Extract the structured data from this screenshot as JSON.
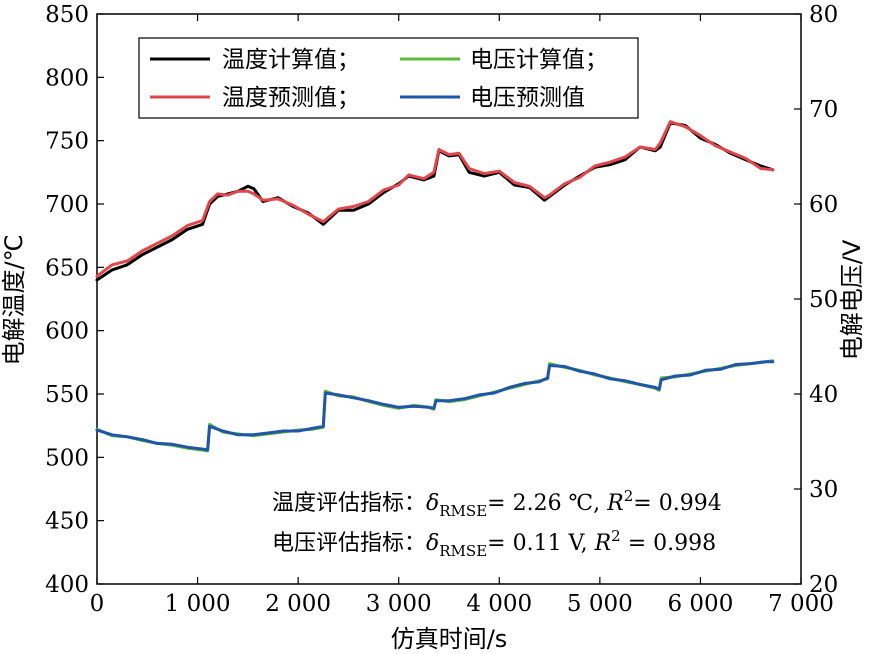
{
  "chart_data": {
    "type": "line",
    "xlabel": "仿真时间/s",
    "ylabel_left": "电解温度/℃",
    "ylabel_right": "电解电压/V",
    "xlim": [
      0,
      7000
    ],
    "ylim_left": [
      400,
      850
    ],
    "ylim_right": [
      20,
      80
    ],
    "x_ticks": [
      0,
      1000,
      2000,
      3000,
      4000,
      5000,
      6000,
      7000
    ],
    "x_tick_labels": [
      "0",
      "1 000",
      "2 000",
      "3 000",
      "4 000",
      "5 000",
      "6 000",
      "7 000"
    ],
    "y_left_ticks": [
      400,
      450,
      500,
      550,
      600,
      650,
      700,
      750,
      800,
      850
    ],
    "y_left_tick_labels": [
      "400",
      "450",
      "500",
      "550",
      "600",
      "650",
      "700",
      "750",
      "800",
      "850"
    ],
    "y_right_ticks": [
      20,
      30,
      40,
      50,
      60,
      70,
      80
    ],
    "y_right_tick_labels": [
      "20",
      "30",
      "40",
      "50",
      "60",
      "70",
      "80"
    ],
    "grid": false,
    "legend_position": "top-left",
    "series": [
      {
        "name": "温度计算值；",
        "axis": "left",
        "color": "#000000",
        "x": [
          0,
          150,
          300,
          450,
          600,
          750,
          900,
          1050,
          1120,
          1200,
          1300,
          1400,
          1500,
          1560,
          1650,
          1800,
          1950,
          2100,
          2250,
          2400,
          2550,
          2700,
          2850,
          3000,
          3100,
          3250,
          3350,
          3400,
          3500,
          3600,
          3700,
          3850,
          4000,
          4150,
          4300,
          4450,
          4500,
          4650,
          4800,
          4950,
          5100,
          5250,
          5400,
          5550,
          5600,
          5700,
          5850,
          6000,
          6150,
          6300,
          6450,
          6600,
          6720
        ],
        "y": [
          640,
          648,
          652,
          660,
          666,
          672,
          680,
          684,
          700,
          706,
          708,
          710,
          714,
          712,
          702,
          705,
          698,
          693,
          684,
          695,
          695,
          700,
          709,
          716,
          722,
          719,
          722,
          742,
          738,
          739,
          725,
          722,
          725,
          715,
          713,
          703,
          706,
          715,
          722,
          729,
          731,
          735,
          745,
          742,
          745,
          764,
          762,
          752,
          747,
          740,
          735,
          730,
          727
        ]
      },
      {
        "name": "温度预测值；",
        "axis": "left",
        "color": "#e0474c",
        "x": [
          0,
          150,
          300,
          450,
          600,
          750,
          900,
          1050,
          1120,
          1200,
          1300,
          1400,
          1500,
          1560,
          1650,
          1800,
          1950,
          2100,
          2250,
          2400,
          2550,
          2700,
          2850,
          3000,
          3100,
          3250,
          3350,
          3400,
          3500,
          3600,
          3700,
          3850,
          4000,
          4150,
          4300,
          4450,
          4500,
          4650,
          4800,
          4950,
          5100,
          5250,
          5400,
          5550,
          5600,
          5700,
          5850,
          6000,
          6150,
          6300,
          6450,
          6600,
          6720
        ],
        "y": [
          643,
          652,
          655,
          663,
          669,
          675,
          683,
          687,
          702,
          708,
          707,
          710,
          710,
          708,
          703,
          704,
          699,
          692,
          686,
          696,
          698,
          702,
          711,
          715,
          723,
          720,
          725,
          743,
          739,
          740,
          728,
          724,
          726,
          717,
          714,
          705,
          707,
          716,
          721,
          730,
          733,
          737,
          745,
          743,
          748,
          765,
          761,
          754,
          746,
          741,
          736,
          728,
          727
        ]
      },
      {
        "name": "电压计算值；",
        "axis": "right",
        "color": "#5cb93a",
        "x": [
          0,
          150,
          300,
          450,
          600,
          750,
          900,
          1050,
          1100,
          1120,
          1250,
          1400,
          1550,
          1700,
          1850,
          2000,
          2150,
          2250,
          2270,
          2400,
          2550,
          2700,
          2850,
          3000,
          3150,
          3300,
          3350,
          3370,
          3500,
          3650,
          3800,
          3950,
          4100,
          4250,
          4400,
          4480,
          4500,
          4650,
          4800,
          4950,
          5100,
          5250,
          5400,
          5550,
          5590,
          5610,
          5750,
          5900,
          6050,
          6200,
          6350,
          6500,
          6650,
          6720
        ],
        "y": [
          36.3,
          35.6,
          35.5,
          35.1,
          34.8,
          34.6,
          34.3,
          34.1,
          34.0,
          36.8,
          36.0,
          35.8,
          35.6,
          35.8,
          36.0,
          36.2,
          36.3,
          36.5,
          40.3,
          39.8,
          39.7,
          39.2,
          38.8,
          38.5,
          38.8,
          38.6,
          38.4,
          39.4,
          39.2,
          39.4,
          39.8,
          40.2,
          40.6,
          41.0,
          41.4,
          41.6,
          43.2,
          42.8,
          42.5,
          42.0,
          41.7,
          41.3,
          41.0,
          40.6,
          40.4,
          41.7,
          41.8,
          42.1,
          42.4,
          42.7,
          43.0,
          43.2,
          43.4,
          43.5
        ]
      },
      {
        "name": "电压预测值",
        "axis": "right",
        "color": "#1f56a8",
        "x": [
          0,
          150,
          300,
          450,
          600,
          750,
          900,
          1050,
          1100,
          1120,
          1250,
          1400,
          1550,
          1700,
          1850,
          2000,
          2150,
          2250,
          2270,
          2400,
          2550,
          2700,
          2850,
          3000,
          3150,
          3300,
          3350,
          3370,
          3500,
          3650,
          3800,
          3950,
          4100,
          4250,
          4400,
          4480,
          4500,
          4650,
          4800,
          4950,
          5100,
          5250,
          5400,
          5550,
          5590,
          5610,
          5750,
          5900,
          6050,
          6200,
          6350,
          6500,
          6650,
          6720
        ],
        "y": [
          36.2,
          35.7,
          35.5,
          35.2,
          34.8,
          34.7,
          34.4,
          34.2,
          34.1,
          36.6,
          36.1,
          35.7,
          35.7,
          35.9,
          36.1,
          36.1,
          36.4,
          36.6,
          40.1,
          39.9,
          39.6,
          39.3,
          38.9,
          38.6,
          38.7,
          38.6,
          38.5,
          39.3,
          39.3,
          39.5,
          39.9,
          40.1,
          40.7,
          41.1,
          41.3,
          41.7,
          43.0,
          42.9,
          42.4,
          42.1,
          41.6,
          41.4,
          41.0,
          40.7,
          40.5,
          41.5,
          41.9,
          42.0,
          42.5,
          42.6,
          43.1,
          43.2,
          43.4,
          43.4
        ]
      }
    ],
    "annotations": [
      {
        "prefix": "温度评估指标：",
        "delta": "δ",
        "delta_sub": "RMSE",
        "value": "= 2.26 ℃, ",
        "r": "R",
        "r_sup": "2",
        "r_value": "= 0.994"
      },
      {
        "prefix": "电压评估指标：",
        "delta": "δ",
        "delta_sub": "RMSE",
        "value": "= 0.11 V, ",
        "r": "R",
        "r_sup": "2",
        "r_value": " = 0.998"
      }
    ]
  }
}
